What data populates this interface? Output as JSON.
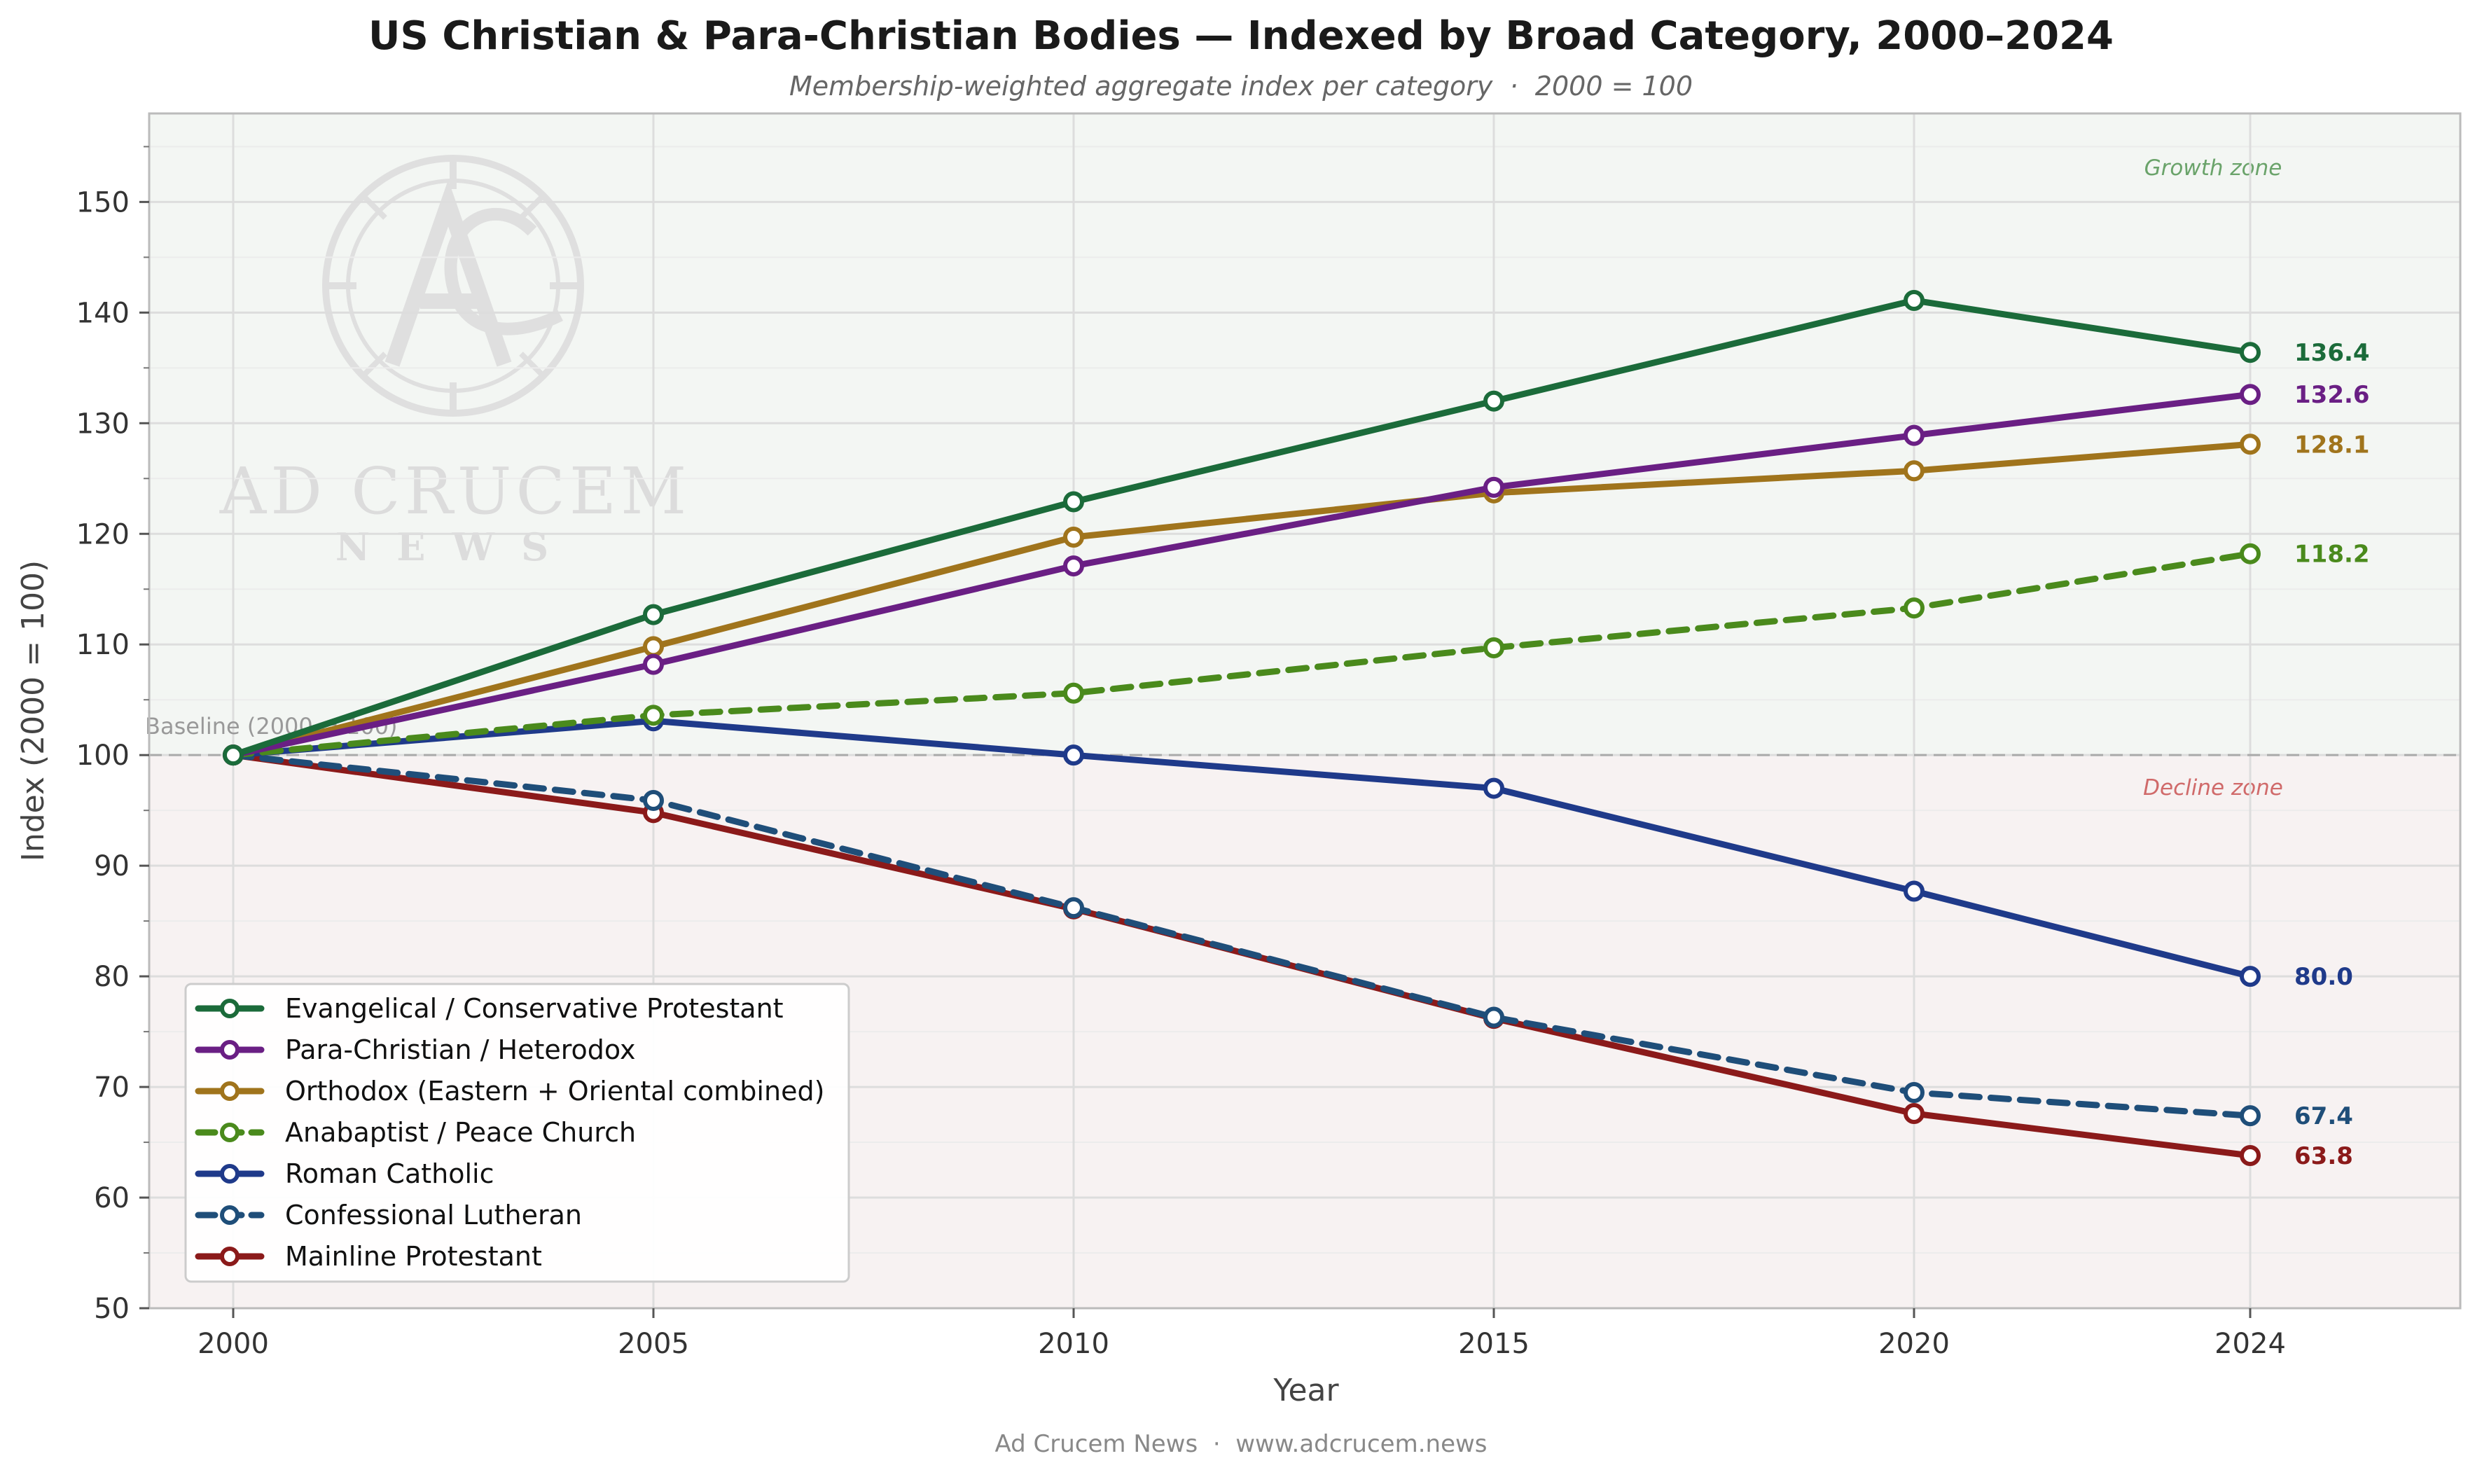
{
  "chart_data": {
    "type": "line",
    "title": "US Christian & Para-Christian Bodies — Indexed by Broad Category, 2000–2024",
    "subtitle": "Membership-weighted aggregate index per category  ·  2000 = 100",
    "xlabel": "Year",
    "ylabel": "Index (2000 = 100)",
    "x": [
      2000,
      2005,
      2010,
      2015,
      2020,
      2024
    ],
    "xlim": [
      1999,
      2026.5
    ],
    "ylim": [
      50,
      158
    ],
    "yticks": [
      50,
      60,
      70,
      80,
      90,
      100,
      110,
      120,
      130,
      140,
      150
    ],
    "grid": true,
    "legend_position": "lower-left",
    "baseline": {
      "value": 100,
      "label": "Baseline (2000 = 100)"
    },
    "zones": {
      "growth_label": "Growth zone",
      "decline_label": "Decline zone"
    },
    "series": [
      {
        "name": "Evangelical / Conservative Protestant",
        "color": "#1b6b3a",
        "dashed": false,
        "values": [
          100,
          112.7,
          122.9,
          132.0,
          141.1,
          136.4
        ],
        "end_label": "136.4"
      },
      {
        "name": "Para-Christian / Heterodox",
        "color": "#6a1f84",
        "dashed": false,
        "values": [
          100,
          108.2,
          117.1,
          124.2,
          128.9,
          132.6
        ],
        "end_label": "132.6"
      },
      {
        "name": "Orthodox (Eastern + Oriental combined)",
        "color": "#a0741c",
        "dashed": false,
        "values": [
          100,
          109.8,
          119.7,
          123.7,
          125.7,
          128.1
        ],
        "end_label": "128.1"
      },
      {
        "name": "Anabaptist / Peace Church",
        "color": "#4a8a1c",
        "dashed": true,
        "values": [
          100,
          103.6,
          105.6,
          109.7,
          113.3,
          118.2
        ],
        "end_label": "118.2"
      },
      {
        "name": "Roman Catholic",
        "color": "#1f3a8a",
        "dashed": false,
        "values": [
          100,
          103.1,
          100.0,
          97.0,
          87.7,
          80.0
        ],
        "end_label": "80.0"
      },
      {
        "name": "Confessional Lutheran",
        "color": "#1f4e79",
        "dashed": true,
        "values": [
          100,
          95.9,
          86.2,
          76.3,
          69.5,
          67.4
        ],
        "end_label": "67.4"
      },
      {
        "name": "Mainline Protestant",
        "color": "#8b1a1a",
        "dashed": false,
        "values": [
          100,
          94.8,
          86.1,
          76.2,
          67.6,
          63.8
        ],
        "end_label": "63.8"
      }
    ],
    "label_order": [
      0,
      1,
      2,
      3,
      4,
      5,
      6
    ]
  },
  "watermark": {
    "line1": "AD CRUCEM",
    "line2": "NEWS"
  },
  "footer": "Ad Crucem News  ·  www.adcrucem.news"
}
